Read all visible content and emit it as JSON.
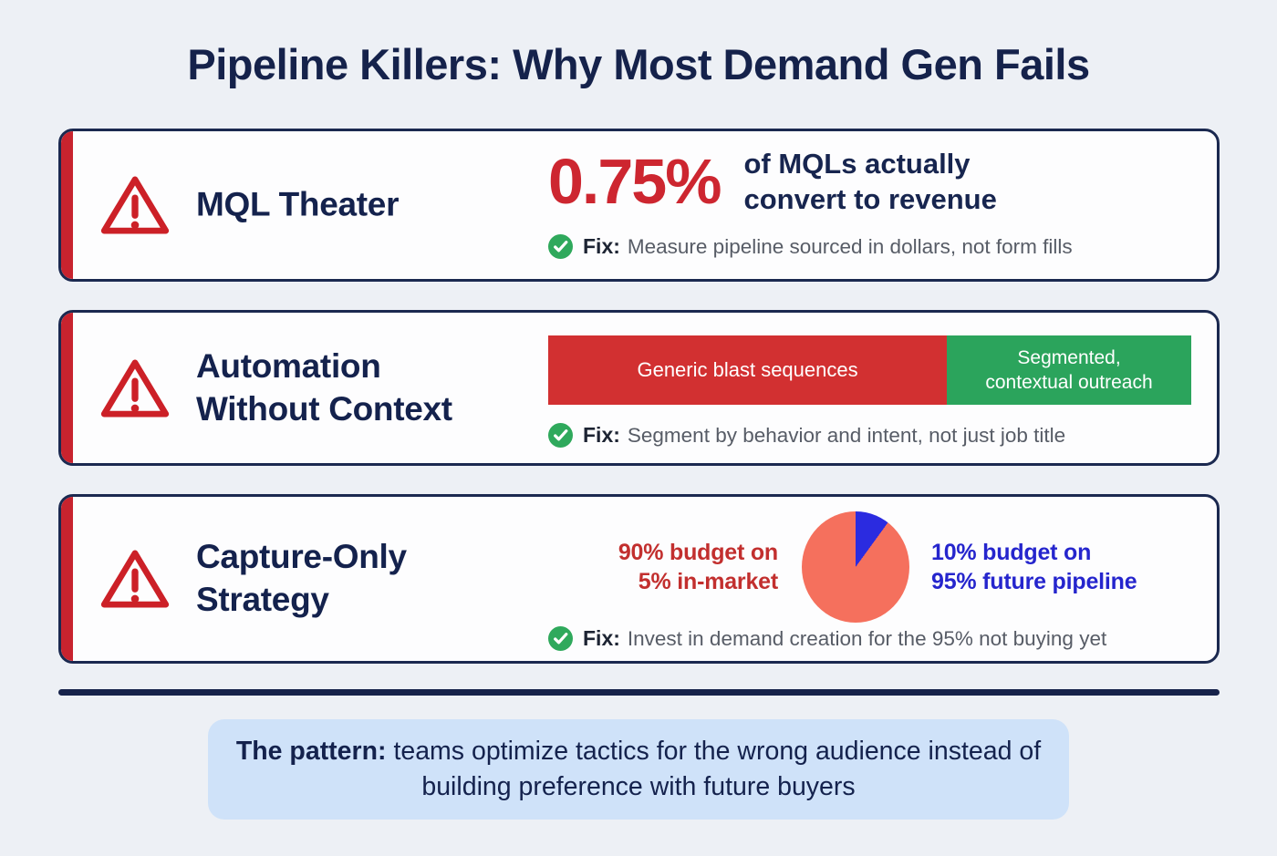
{
  "title": "Pipeline Killers: Why Most Demand Gen Fails",
  "colors": {
    "background": "#edf0f5",
    "navy": "#15224b",
    "card_border": "#1b2950",
    "card_stripe_red": "#c8232e",
    "stat_red": "#cd2630",
    "warning_red": "#cc2027",
    "check_green": "#2fa95c",
    "gray_text": "#575c66",
    "footer_box_blue": "#cfe2f9"
  },
  "cards": [
    {
      "title_lines": [
        "MQL Theater"
      ],
      "stat": {
        "value": "0.75%",
        "caption_lines": [
          "of MQLs actually",
          "convert to revenue"
        ]
      },
      "fix": {
        "label": "Fix:",
        "text": "Measure pipeline sourced in dollars, not form fills"
      }
    },
    {
      "title_lines": [
        "Automation",
        "Without Context"
      ],
      "bar": {
        "segments": [
          {
            "label": "Generic blast sequences",
            "pct": 62,
            "color": "#d23031"
          },
          {
            "label": "Segmented, contextual outreach",
            "pct": 38,
            "color": "#2ba45c"
          }
        ]
      },
      "fix": {
        "label": "Fix:",
        "text": "Segment by behavior and intent, not just job title"
      }
    },
    {
      "title_lines": [
        "Capture-Only",
        "Strategy"
      ],
      "pie": {
        "slices": [
          {
            "label": "10% budget on 95% future pipeline",
            "value": 10,
            "color": "#2b2be0"
          },
          {
            "label": "90% budget on 5% in-market",
            "value": 90,
            "color": "#f5705d"
          }
        ],
        "left_caption_lines": [
          "90% budget on",
          "5% in-market"
        ],
        "right_caption_lines": [
          "10% budget on",
          "95% future pipeline"
        ]
      },
      "fix": {
        "label": "Fix:",
        "text": "Invest in demand creation for the 95% not buying yet"
      }
    }
  ],
  "footer": {
    "pattern_label": "The pattern:",
    "pattern_text": "teams optimize tactics for the wrong audience instead of building preference with future buyers"
  },
  "chart_data": [
    {
      "type": "bar",
      "title": "Automation Without Context comparison bar",
      "categories": [
        "Generic blast sequences",
        "Segmented, contextual outreach"
      ],
      "values": [
        62,
        38
      ],
      "value_unit": "percent of bar width (approx)",
      "colors": [
        "#d23031",
        "#2ba45c"
      ],
      "legend_position": "inside-segments"
    },
    {
      "type": "pie",
      "title": "Capture-Only Strategy budget split",
      "labels": [
        "90% budget on 5% in-market",
        "10% budget on 95% future pipeline"
      ],
      "values": [
        90,
        10
      ],
      "colors": [
        "#f5705d",
        "#2b2be0"
      ],
      "start_angle": "12 o'clock, 10% slice drawn first clockwise"
    }
  ]
}
